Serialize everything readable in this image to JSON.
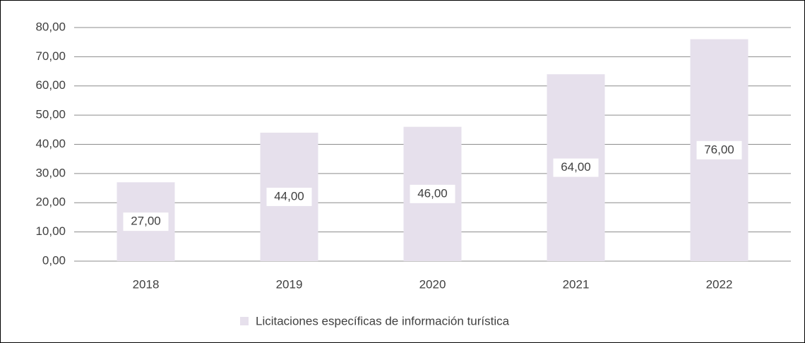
{
  "chart_data": {
    "type": "bar",
    "categories": [
      "2018",
      "2019",
      "2020",
      "2021",
      "2022"
    ],
    "series": [
      {
        "name": "Licitaciones específicas de información turística",
        "color": "#e6e0ec",
        "values": [
          27,
          44,
          46,
          64,
          76
        ],
        "value_labels": [
          "27,00",
          "44,00",
          "46,00",
          "64,00",
          "76,00"
        ]
      }
    ],
    "ylim": [
      0,
      80
    ],
    "yticks": [
      {
        "value": 0,
        "label": "0,00"
      },
      {
        "value": 10,
        "label": "10,00"
      },
      {
        "value": 20,
        "label": "20,00"
      },
      {
        "value": 30,
        "label": "30,00"
      },
      {
        "value": 40,
        "label": "40,00"
      },
      {
        "value": 50,
        "label": "50,00"
      },
      {
        "value": 60,
        "label": "60,00"
      },
      {
        "value": 70,
        "label": "70,00"
      },
      {
        "value": 80,
        "label": "80,00"
      }
    ],
    "grid": true,
    "legend": "bottom"
  }
}
